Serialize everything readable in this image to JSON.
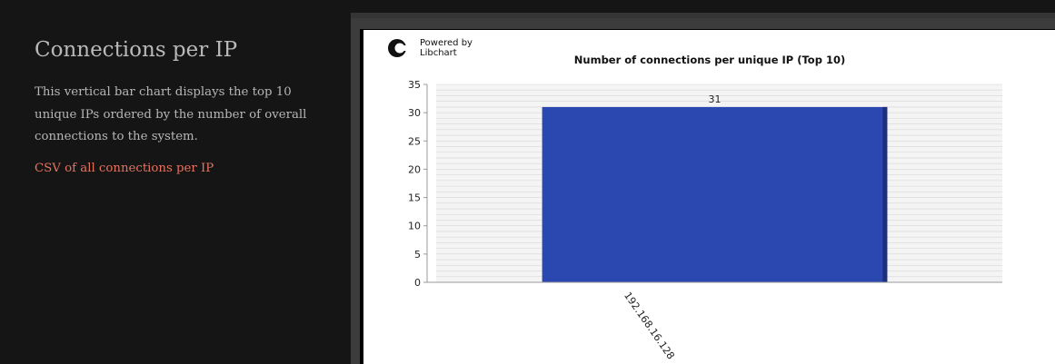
{
  "sidebar": {
    "title": "Connections per IP",
    "description": "This vertical bar chart displays the top 10 unique IPs ordered by the number of overall connections to the system.",
    "csv_link": "CSV of all connections per IP",
    "link_color": "#e8735f"
  },
  "logo": {
    "line1": "Powered by",
    "line2": "Libchart",
    "icon": "libchart-logo-icon"
  },
  "chart_data": {
    "type": "bar",
    "title": "Number of connections per unique IP (Top 10)",
    "categories": [
      "192.168.16.128"
    ],
    "values": [
      31
    ],
    "data_labels": [
      "31"
    ],
    "ylim": [
      0,
      35
    ],
    "y_ticks": [
      "0",
      "5",
      "10",
      "15",
      "20",
      "25",
      "30",
      "35"
    ],
    "grid": true,
    "bar_color": "#2b47b0",
    "xlabel": "",
    "ylabel": ""
  }
}
